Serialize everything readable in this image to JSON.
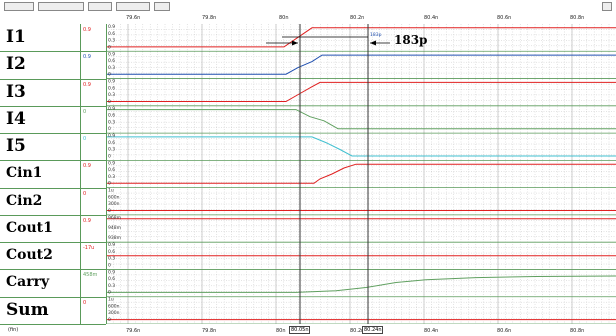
{
  "window": {
    "status_left": "(fin)"
  },
  "axis_labels": [
    "79.6n",
    "79.8n",
    "80n",
    "80.2n",
    "80.4n",
    "80.6n",
    "80.8n"
  ],
  "cursors": {
    "a": "80.05n",
    "b": "80.24n",
    "tag": "183p"
  },
  "annotation": {
    "text": "183p"
  },
  "signals": [
    {
      "name": "I1",
      "value": "0.9",
      "color": "#e02020",
      "ticks": [
        "0.9",
        "0.6",
        "0.3",
        "0"
      ]
    },
    {
      "name": "I2",
      "value": "0.9",
      "color": "#2050b0",
      "ticks": [
        "0.9",
        "0.6",
        "0.3",
        "0"
      ]
    },
    {
      "name": "I3",
      "value": "0.9",
      "color": "#e02020",
      "ticks": [
        "0.9",
        "0.6",
        "0.3",
        "0"
      ]
    },
    {
      "name": "I4",
      "value": "0",
      "color": "#60a060",
      "ticks": [
        "0.9",
        "0.6",
        "0.3",
        "0"
      ]
    },
    {
      "name": "I5",
      "value": "0",
      "color": "#40c0d0",
      "ticks": [
        "0.9",
        "0.6",
        "0.3",
        "0"
      ]
    },
    {
      "name": "Cin1",
      "value": "0.9",
      "color": "#e02020",
      "ticks": [
        "0.9",
        "0.6",
        "0.3",
        "0"
      ]
    },
    {
      "name": "Cin2",
      "value": "0",
      "color": "#e02020",
      "ticks": [
        "1u",
        "600n",
        "300n",
        "0"
      ]
    },
    {
      "name": "Cout1",
      "value": "0.9",
      "color": "#e02020",
      "ticks": [
        "968m",
        "948m",
        "938m"
      ]
    },
    {
      "name": "Cout2",
      "value": "-17u",
      "color": "#e02020",
      "ticks": [
        "0.9",
        "0.6",
        "0.3",
        "0"
      ]
    },
    {
      "name": "Carry",
      "value": "458m",
      "color": "#60a060",
      "ticks": [
        "0.9",
        "0.6",
        "0.3",
        "0"
      ]
    },
    {
      "name": "Sum",
      "value": "0",
      "color": "#e02020",
      "ticks": [
        "1u",
        "600n",
        "300n",
        "0"
      ]
    }
  ],
  "colors": {
    "grid": "#c8c8c8",
    "separator": "#5a9a5a",
    "cursor": "#333333"
  },
  "toolbar_icons": [
    "zoom-icon",
    "fit-icon",
    "cursor-icon",
    "measure-icon",
    "grid-icon",
    "print-icon"
  ]
}
